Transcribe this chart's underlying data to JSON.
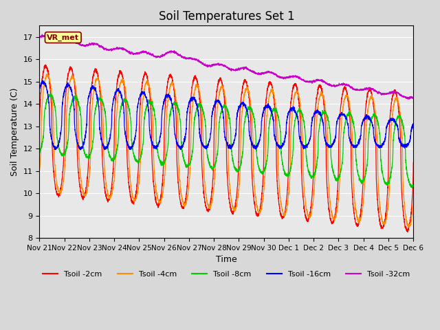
{
  "title": "Soil Temperatures Set 1",
  "xlabel": "Time",
  "ylabel": "Soil Temperature (C)",
  "ylim": [
    8.0,
    17.5
  ],
  "yticks": [
    8.0,
    9.0,
    10.0,
    11.0,
    12.0,
    13.0,
    14.0,
    15.0,
    16.0,
    17.0
  ],
  "x_labels": [
    "Nov 21",
    "Nov 22",
    "Nov 23",
    "Nov 24",
    "Nov 25",
    "Nov 26",
    "Nov 27",
    "Nov 28",
    "Nov 29",
    "Nov 30",
    "Dec 1",
    "Dec 2",
    "Dec 3",
    "Dec 4",
    "Dec 5",
    "Dec 6"
  ],
  "colors": {
    "tsoil_2cm": "#ff0000",
    "tsoil_4cm": "#ff8c00",
    "tsoil_8cm": "#00cc00",
    "tsoil_16cm": "#0000ff",
    "tsoil_32cm": "#cc00cc"
  },
  "legend_labels": [
    "Tsoil -2cm",
    "Tsoil -4cm",
    "Tsoil -8cm",
    "Tsoil -16cm",
    "Tsoil -32cm"
  ],
  "vr_met_label": "VR_met",
  "num_points": 3600,
  "days_total": 15,
  "figsize": [
    6.4,
    4.8
  ],
  "dpi": 100
}
